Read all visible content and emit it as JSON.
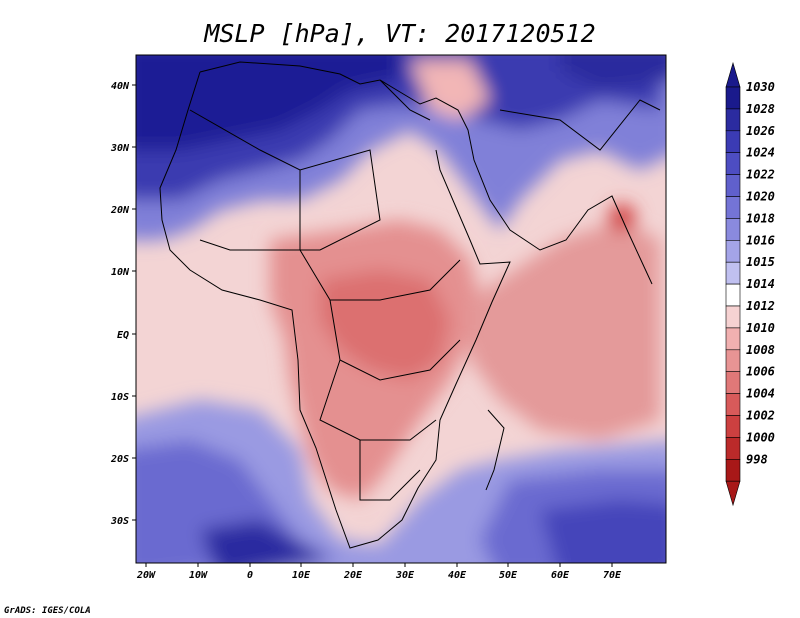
{
  "title": "MSLP [hPa], VT: 2017120512",
  "credit": "GrADS: IGES/COLA",
  "lat_labels": [
    "40N",
    "30N",
    "20N",
    "10N",
    "EQ",
    "10S",
    "20S",
    "30S"
  ],
  "lon_labels": [
    "20W",
    "10W",
    "0",
    "10E",
    "20E",
    "30E",
    "40E",
    "50E",
    "60E",
    "70E"
  ],
  "colorbar": {
    "levels": [
      "1030",
      "1028",
      "1026",
      "1024",
      "1022",
      "1020",
      "1018",
      "1016",
      "1015",
      "1014",
      "1012",
      "1010",
      "1008",
      "1006",
      "1004",
      "1002",
      "1000",
      "998"
    ],
    "colors": [
      "#1a1a8c",
      "#2b2ba0",
      "#3b3bb4",
      "#4d4dc2",
      "#6060cc",
      "#7474d6",
      "#8a8ade",
      "#a4a4e8",
      "#c0c0f0",
      "#ffffff",
      "#f6d2d2",
      "#f1b0b0",
      "#e89494",
      "#e07878",
      "#d85a5a",
      "#cc4040",
      "#bb2a2a",
      "#a81818"
    ],
    "top_cap": "#1a1a8c",
    "bottom_cap": "#a81818"
  }
}
